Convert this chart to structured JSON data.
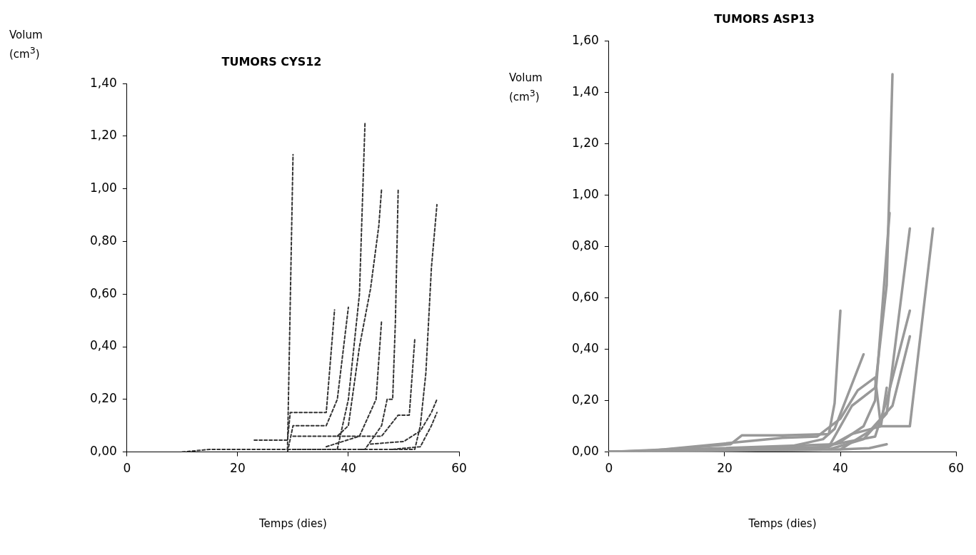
{
  "chart_data": [
    {
      "type": "line",
      "title": "TUMORS CYS12",
      "xlabel": "Temps (dies)",
      "ylabel": "Volum (cm$^{3}$)",
      "xlim": [
        0,
        60
      ],
      "xticks": [
        0,
        20,
        40,
        60
      ],
      "ylim": [
        0,
        1.4
      ],
      "yticks": [
        {
          "value": 0,
          "label": "0,00"
        },
        {
          "value": 0.2,
          "label": "0,20"
        },
        {
          "value": 0.4,
          "label": "0,40"
        },
        {
          "value": 0.6,
          "label": "0,60"
        },
        {
          "value": 0.8,
          "label": "0,80"
        },
        {
          "value": 1.0,
          "label": "1,00"
        },
        {
          "value": 1.2,
          "label": "1,20"
        },
        {
          "value": 1.4,
          "label": "1,40"
        }
      ],
      "grid": false,
      "legend": false,
      "marker": "none",
      "line_style": "dashed",
      "series": [
        {
          "color": "#333333",
          "x": [
            10,
            15,
            22,
            29,
            30
          ],
          "values": [
            0,
            0.01,
            0.01,
            0.01,
            1.13
          ]
        },
        {
          "color": "#333333",
          "x": [
            23,
            29,
            29.5,
            36,
            37.5
          ],
          "values": [
            0.045,
            0.045,
            0.15,
            0.15,
            0.54
          ]
        },
        {
          "color": "#333333",
          "x": [
            29,
            30,
            36,
            38,
            40
          ],
          "values": [
            0,
            0.1,
            0.1,
            0.2,
            0.55
          ]
        },
        {
          "color": "#333333",
          "x": [
            29,
            38,
            40,
            42,
            43
          ],
          "values": [
            0.01,
            0.01,
            0.2,
            0.6,
            1.25
          ]
        },
        {
          "color": "#333333",
          "x": [
            30,
            38,
            40,
            42,
            44,
            45.5,
            46
          ],
          "values": [
            0.06,
            0.06,
            0.1,
            0.4,
            0.62,
            0.86,
            1.0
          ]
        },
        {
          "color": "#333333",
          "x": [
            30,
            43,
            46,
            47,
            48,
            48.5,
            49
          ],
          "values": [
            0.01,
            0.01,
            0.1,
            0.2,
            0.2,
            0.5,
            1.0
          ]
        },
        {
          "color": "#333333",
          "x": [
            36,
            42,
            45,
            46
          ],
          "values": [
            0.02,
            0.06,
            0.2,
            0.5
          ]
        },
        {
          "color": "#333333",
          "x": [
            38,
            46,
            49,
            51,
            52
          ],
          "values": [
            0.06,
            0.06,
            0.14,
            0.14,
            0.43
          ]
        },
        {
          "color": "#333333",
          "x": [
            42,
            52,
            53,
            54,
            55,
            56
          ],
          "values": [
            0.01,
            0.01,
            0.1,
            0.3,
            0.7,
            0.94
          ]
        },
        {
          "color": "#333333",
          "x": [
            44,
            50,
            53,
            55,
            56
          ],
          "values": [
            0.03,
            0.04,
            0.08,
            0.15,
            0.2
          ]
        },
        {
          "color": "#333333",
          "x": [
            48,
            53,
            55,
            56
          ],
          "values": [
            0.01,
            0.02,
            0.1,
            0.15
          ]
        }
      ]
    },
    {
      "type": "line",
      "title": "TUMORS ASP13",
      "xlabel": "Temps (dies)",
      "ylabel": "Volum (cm$^{3}$)",
      "xlim": [
        0,
        60
      ],
      "xticks": [
        0,
        20,
        40,
        60
      ],
      "ylim": [
        0,
        1.6
      ],
      "yticks": [
        {
          "value": 0,
          "label": "0,00"
        },
        {
          "value": 0.2,
          "label": "0,20"
        },
        {
          "value": 0.4,
          "label": "0,40"
        },
        {
          "value": 0.6,
          "label": "0,60"
        },
        {
          "value": 0.8,
          "label": "0,80"
        },
        {
          "value": 1.0,
          "label": "1,00"
        },
        {
          "value": 1.2,
          "label": "1,20"
        },
        {
          "value": 1.4,
          "label": "1,40"
        },
        {
          "value": 1.6,
          "label": "1,60"
        }
      ],
      "grid": false,
      "legend": false,
      "marker": "none",
      "line_style": "solid",
      "series": [
        {
          "color": "#999999",
          "x": [
            0,
            10,
            21,
            23,
            30,
            38,
            39,
            40
          ],
          "values": [
            0,
            0.01,
            0.03,
            0.065,
            0.065,
            0.07,
            0.19,
            0.55
          ]
        },
        {
          "color": "#999999",
          "x": [
            0,
            20,
            31,
            37,
            39,
            44
          ],
          "values": [
            0,
            0.01,
            0.02,
            0.05,
            0.09,
            0.38
          ]
        },
        {
          "color": "#999999",
          "x": [
            0,
            30,
            38,
            40,
            42,
            46,
            48,
            49
          ],
          "values": [
            0,
            0.01,
            0.02,
            0.1,
            0.18,
            0.25,
            0.65,
            1.47
          ]
        },
        {
          "color": "#999999",
          "x": [
            0,
            36,
            40,
            44,
            46,
            48.5
          ],
          "values": [
            0,
            0.01,
            0.04,
            0.1,
            0.2,
            0.93
          ]
        },
        {
          "color": "#999999",
          "x": [
            0,
            38,
            42,
            47,
            52,
            56
          ],
          "values": [
            0,
            0.02,
            0.07,
            0.1,
            0.1,
            0.87
          ]
        },
        {
          "color": "#999999",
          "x": [
            0,
            38,
            44,
            48,
            52
          ],
          "values": [
            0,
            0.01,
            0.05,
            0.15,
            0.87
          ]
        },
        {
          "color": "#999999",
          "x": [
            0,
            39,
            46,
            48,
            52
          ],
          "values": [
            0,
            0.03,
            0.06,
            0.2,
            0.55
          ]
        },
        {
          "color": "#999999",
          "x": [
            0,
            40,
            45,
            49,
            52
          ],
          "values": [
            0,
            0.01,
            0.08,
            0.18,
            0.45
          ]
        },
        {
          "color": "#999999",
          "x": [
            0,
            40,
            45,
            48
          ],
          "values": [
            0,
            0.01,
            0.015,
            0.03
          ]
        },
        {
          "color": "#999999",
          "x": [
            5,
            30,
            36,
            40,
            43,
            46,
            47,
            48
          ],
          "values": [
            0,
            0.055,
            0.06,
            0.13,
            0.24,
            0.29,
            0.1,
            0.25
          ]
        }
      ]
    }
  ]
}
